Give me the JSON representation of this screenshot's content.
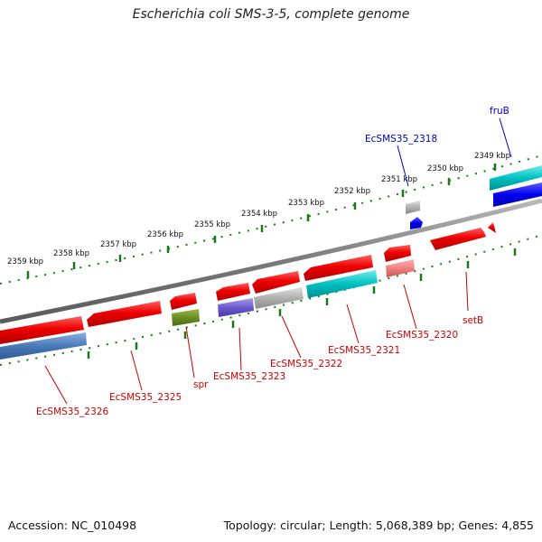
{
  "title": "Escherichia coli SMS-3-5, complete genome",
  "footer": {
    "accession": "Accession: NC_010498",
    "summary": "Topology: circular; Length: 5,068,389 bp; Genes: 4,855"
  },
  "colors": {
    "backbone": "#808080",
    "tick": "#1a7a1a",
    "label_red": "#cc0000",
    "label_blue": "#0000cc"
  },
  "kbp_labels": [
    "2359 kbp",
    "2358 kbp",
    "2357 kbp",
    "2356 kbp",
    "2355 kbp",
    "2354 kbp",
    "2353 kbp",
    "2352 kbp",
    "2351 kbp",
    "2350 kbp",
    "2349 kbp"
  ],
  "features": [
    {
      "name": "EcSMS35_2326",
      "label": "EcSMS35_2326",
      "color": "#4a7ab8"
    },
    {
      "name": "EcSMS35_2325",
      "label": "EcSMS35_2325",
      "color": "#ee0000"
    },
    {
      "name": "spr",
      "label": "spr",
      "color": "#6b8e23"
    },
    {
      "name": "EcSMS35_2323",
      "label": "EcSMS35_2323",
      "color": "#6a5acd"
    },
    {
      "name": "EcSMS35_2322",
      "label": "EcSMS35_2322",
      "color": "#b0b0b0"
    },
    {
      "name": "EcSMS35_2321",
      "label": "EcSMS35_2321",
      "color": "#00c0c0"
    },
    {
      "name": "EcSMS35_2320",
      "label": "EcSMS35_2320",
      "color": "#f08080"
    },
    {
      "name": "setB",
      "label": "setB",
      "color": "#ee0000"
    },
    {
      "name": "EcSMS35_2318",
      "label": "EcSMS35_2318",
      "color": "#b0b0b0"
    },
    {
      "name": "fruB",
      "label": "fruB",
      "color": "#0000ee"
    }
  ]
}
